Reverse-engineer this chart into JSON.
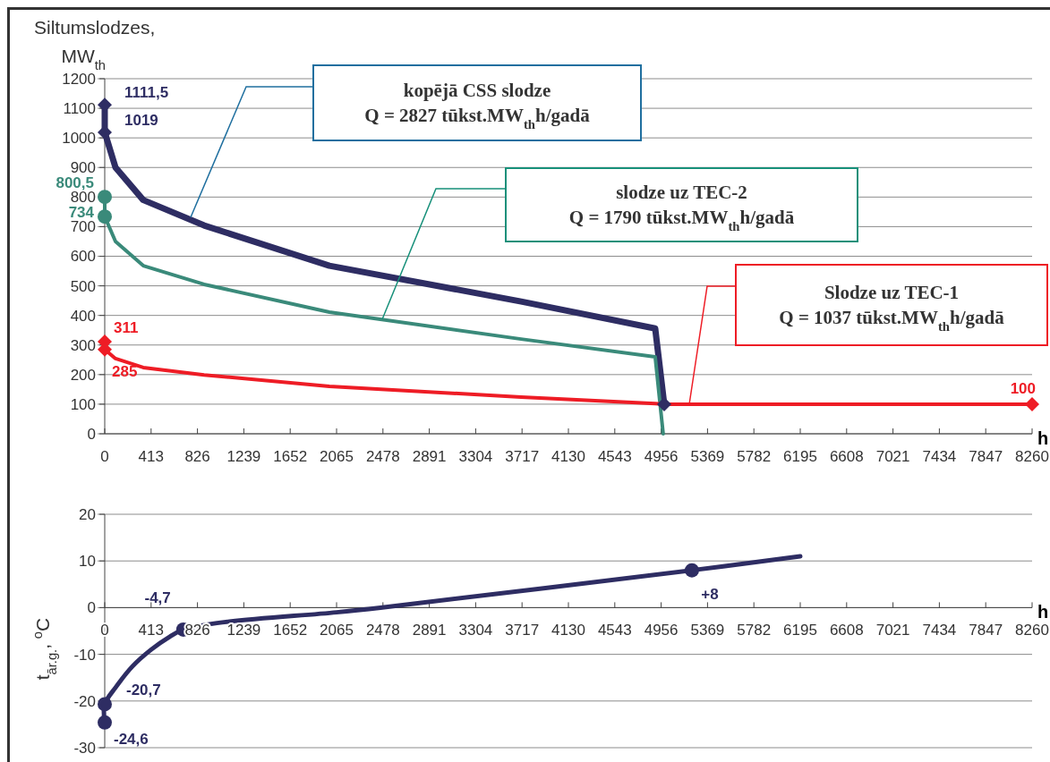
{
  "chart_data": [
    {
      "type": "line",
      "ylabel": "Siltumslodzes, MW$_{th}$",
      "xlabel": "h",
      "xlim": [
        0,
        8260
      ],
      "xticks": [
        0,
        413,
        826,
        1239,
        1652,
        2065,
        2478,
        2891,
        3304,
        3717,
        4130,
        4543,
        4956,
        5369,
        5782,
        6195,
        6608,
        7021,
        7434,
        7847,
        8260
      ],
      "ylim": [
        0,
        1200
      ],
      "yticks": [
        0,
        100,
        200,
        300,
        400,
        500,
        600,
        700,
        800,
        900,
        1000,
        1100,
        1200
      ],
      "grid": "y",
      "series": [
        {
          "color": "#2e2d63",
          "x": [
            0,
            0,
            96,
            343,
            885,
            2001,
            3709,
            4903,
            4983
          ],
          "values": [
            1111.5,
            1019,
            900,
            790,
            704,
            568,
            447,
            356,
            100
          ]
        },
        {
          "color": "#3a8a7a",
          "x": [
            0,
            0,
            96,
            343,
            885,
            2001,
            3709,
            4903,
            4974
          ],
          "values": [
            800.5,
            734,
            650,
            568,
            505,
            411,
            320,
            260,
            0
          ]
        },
        {
          "color": "#ee1c25",
          "x": [
            0,
            0,
            96,
            343,
            885,
            2001,
            3709,
            4903,
            4983,
            8260
          ],
          "values": [
            311,
            285,
            254,
            224,
            199,
            160,
            124,
            102,
            100,
            100
          ]
        },
        {
          "type": "scatter",
          "marker": "diamond",
          "color": "#2e2d63",
          "x": [
            0,
            0,
            4983
          ],
          "values": [
            1111.5,
            1019,
            100
          ],
          "value_labels": [
            "1111,5",
            "1019",
            null
          ]
        },
        {
          "type": "scatter",
          "marker": "circle",
          "color": "#3a8a7a",
          "x": [
            0,
            0
          ],
          "values": [
            800.5,
            734
          ],
          "value_labels": [
            "800,5",
            "734"
          ]
        },
        {
          "type": "scatter",
          "marker": "diamond",
          "color": "#ee1c25",
          "x": [
            0,
            0,
            8260
          ],
          "values": [
            311,
            285,
            100
          ],
          "value_labels": [
            "311",
            "285",
            "100"
          ]
        }
      ],
      "annotations": [
        "kopējā CSS slodze\nQ = 2827 tūkst.MW$_{th}$h/gadā",
        "slodze uz TEC-2\nQ = 1790 tūkst.MW$_{th}$h/gadā",
        "Slodze uz TEC-1\nQ = 1037 tūkst.MW$_{th}$h/gadā"
      ]
    },
    {
      "type": "line",
      "ylabel": "t$_{ār.g.}$, $^{o}$C",
      "xlabel": "h",
      "xlim": [
        0,
        8260
      ],
      "xticks": [
        0,
        413,
        826,
        1239,
        1652,
        2065,
        2478,
        2891,
        3304,
        3717,
        4130,
        4543,
        4956,
        5369,
        5782,
        6195,
        6608,
        7021,
        7434,
        7847,
        8260
      ],
      "ylim": [
        -30,
        20
      ],
      "yticks": [
        -30,
        -20,
        -10,
        0,
        10,
        20
      ],
      "grid": "y",
      "series": [
        {
          "color": "#2e2d63",
          "x": [
            0,
            0,
            100,
            250,
            413,
            580,
            700,
            1000,
            2065,
            2456,
            5230,
            6195
          ],
          "values": [
            -24.6,
            -20.7,
            -17,
            -12.5,
            -9,
            -6.2,
            -4.7,
            -3.3,
            -1,
            0,
            8,
            11
          ]
        },
        {
          "type": "scatter",
          "marker": "circle",
          "color": "#2e2d63",
          "x": [
            0,
            0,
            700,
            5230
          ],
          "values": [
            -24.6,
            -20.7,
            -4.7,
            8
          ],
          "value_labels": [
            "-24,6",
            "-20,7",
            "-4,7",
            "+8"
          ]
        }
      ]
    }
  ]
}
